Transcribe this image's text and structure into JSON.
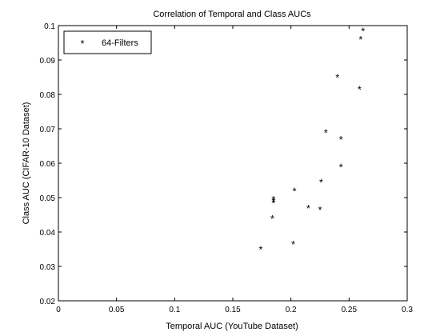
{
  "chart_data": {
    "type": "scatter",
    "title": "Correlation of Temporal and Class AUCs",
    "xlabel": "Temporal AUC (YouTube Dataset)",
    "ylabel": "Class AUC (CIFAR-10 Dataset)",
    "xlim": [
      0,
      0.3
    ],
    "ylim": [
      0.02,
      0.1
    ],
    "xticks": [
      0,
      0.05,
      0.1,
      0.15,
      0.2,
      0.25,
      0.3
    ],
    "xtick_labels": [
      "0",
      "0.05",
      "0.1",
      "0.15",
      "0.2",
      "0.25",
      "0.3"
    ],
    "yticks": [
      0.02,
      0.03,
      0.04,
      0.05,
      0.06,
      0.07,
      0.08,
      0.09,
      0.1
    ],
    "ytick_labels": [
      "0.02",
      "0.03",
      "0.04",
      "0.05",
      "0.06",
      "0.07",
      "0.08",
      "0.09",
      "0.1"
    ],
    "grid": false,
    "legend_position": "top-left",
    "marker": "*",
    "series": [
      {
        "name": "64-Filters",
        "color": "#000000",
        "points": [
          {
            "x": 0.174,
            "y": 0.035
          },
          {
            "x": 0.184,
            "y": 0.044
          },
          {
            "x": 0.185,
            "y": 0.0485
          },
          {
            "x": 0.185,
            "y": 0.049
          },
          {
            "x": 0.185,
            "y": 0.0495
          },
          {
            "x": 0.202,
            "y": 0.0365
          },
          {
            "x": 0.203,
            "y": 0.052
          },
          {
            "x": 0.215,
            "y": 0.047
          },
          {
            "x": 0.225,
            "y": 0.0465
          },
          {
            "x": 0.226,
            "y": 0.0545
          },
          {
            "x": 0.23,
            "y": 0.069
          },
          {
            "x": 0.24,
            "y": 0.085
          },
          {
            "x": 0.243,
            "y": 0.067
          },
          {
            "x": 0.243,
            "y": 0.059
          },
          {
            "x": 0.259,
            "y": 0.0815
          },
          {
            "x": 0.26,
            "y": 0.096
          },
          {
            "x": 0.262,
            "y": 0.0985
          }
        ]
      }
    ]
  }
}
